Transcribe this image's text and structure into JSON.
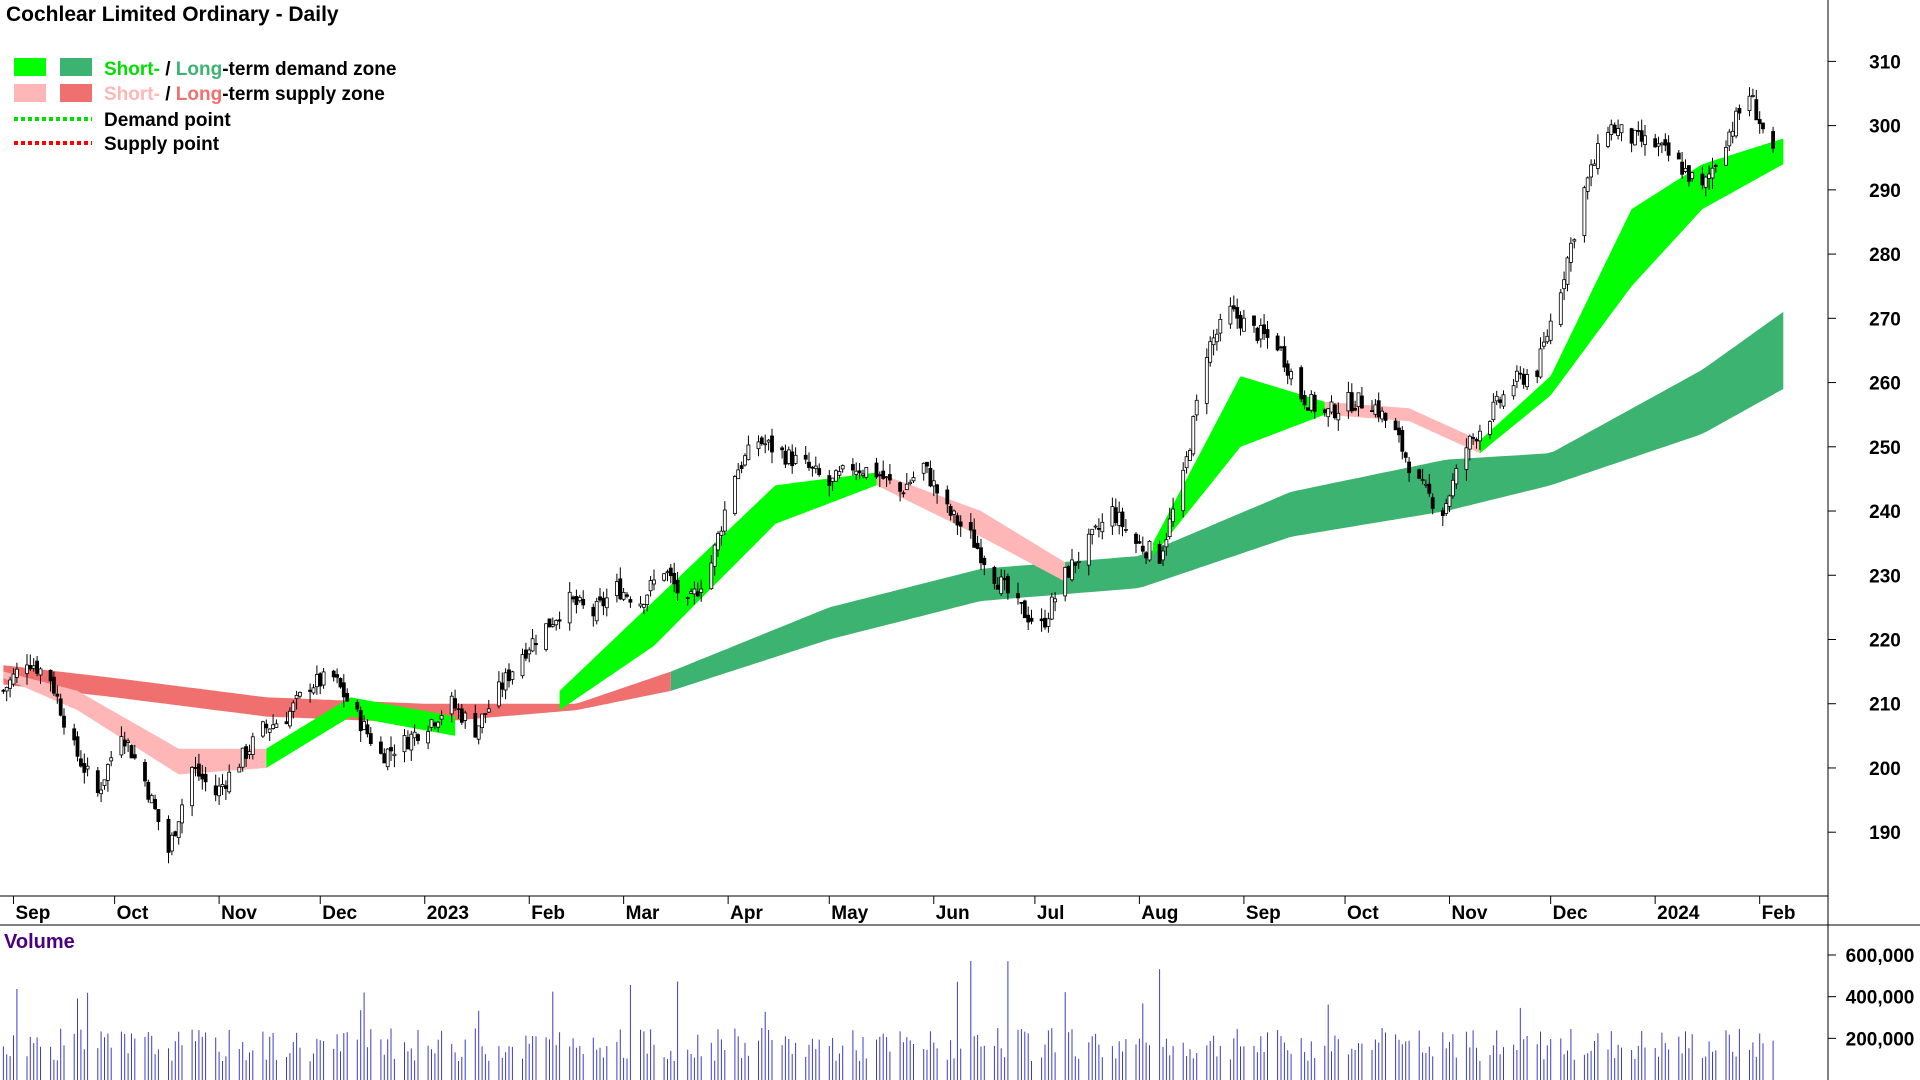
{
  "title": "Cochlear Limited Ordinary - Daily",
  "legend": {
    "zone1_short": "Short-",
    "zone1_rest_a": " / ",
    "zone1_long": "Long",
    "zone1_rest_b": "-term demand zone",
    "zone2_short": "Short-",
    "zone2_rest_a": " / ",
    "zone2_long": "Long",
    "zone2_rest_b": "-term supply zone",
    "demand_point": "Demand point",
    "supply_point": "Supply point"
  },
  "volume_label": "Volume",
  "colors": {
    "short_demand": "#00ff00",
    "long_demand": "#3cb371",
    "short_supply": "#ffb6b6",
    "long_supply": "#f07070",
    "overlap": "#ff6b2d",
    "demand_point": "#00e000",
    "supply_point": "#ff0000",
    "volume_bar": "#3c3cc8",
    "volume_label": "#4b0082"
  },
  "chart_data": {
    "type": "candlestick",
    "x_ticks": [
      "Sep",
      "Oct",
      "Nov",
      "Dec",
      "2023",
      "Feb",
      "Mar",
      "Apr",
      "May",
      "Jun",
      "Jul",
      "Aug",
      "Sep",
      "Oct",
      "Nov",
      "Dec",
      "2024",
      "Feb"
    ],
    "price_ticks": [
      190,
      200,
      210,
      220,
      230,
      240,
      250,
      260,
      270,
      280,
      290,
      300,
      310
    ],
    "volume_ticks": [
      "200,000",
      "400,000",
      "600,000"
    ],
    "ylim": [
      181,
      318
    ],
    "volume_ylim": [
      0,
      720000
    ],
    "price_path_weekly_close": [
      [
        "2022-08-29",
        212
      ],
      [
        "2022-09-05",
        217
      ],
      [
        "2022-09-12",
        214
      ],
      [
        "2022-09-19",
        203
      ],
      [
        "2022-09-26",
        196
      ],
      [
        "2022-10-03",
        206
      ],
      [
        "2022-10-10",
        198
      ],
      [
        "2022-10-17",
        187
      ],
      [
        "2022-10-24",
        200
      ],
      [
        "2022-10-31",
        196
      ],
      [
        "2022-11-07",
        201
      ],
      [
        "2022-11-14",
        206
      ],
      [
        "2022-11-21",
        208
      ],
      [
        "2022-11-28",
        213
      ],
      [
        "2022-12-05",
        214
      ],
      [
        "2022-12-12",
        208
      ],
      [
        "2022-12-19",
        202
      ],
      [
        "2022-12-26",
        204
      ],
      [
        "2023-01-02",
        207
      ],
      [
        "2023-01-09",
        210
      ],
      [
        "2023-01-16",
        206
      ],
      [
        "2023-01-23",
        212
      ],
      [
        "2023-01-30",
        218
      ],
      [
        "2023-02-06",
        222
      ],
      [
        "2023-02-13",
        226
      ],
      [
        "2023-02-20",
        224
      ],
      [
        "2023-02-27",
        228
      ],
      [
        "2023-03-06",
        226
      ],
      [
        "2023-03-13",
        231
      ],
      [
        "2023-03-20",
        225
      ],
      [
        "2023-03-27",
        232
      ],
      [
        "2023-04-03",
        246
      ],
      [
        "2023-04-10",
        251
      ],
      [
        "2023-04-17",
        249
      ],
      [
        "2023-04-24",
        247
      ],
      [
        "2023-05-01",
        244
      ],
      [
        "2023-05-08",
        247
      ],
      [
        "2023-05-15",
        246
      ],
      [
        "2023-05-22",
        243
      ],
      [
        "2023-05-29",
        247
      ],
      [
        "2023-06-05",
        240
      ],
      [
        "2023-06-12",
        236
      ],
      [
        "2023-06-19",
        230
      ],
      [
        "2023-06-26",
        225
      ],
      [
        "2023-07-03",
        222
      ],
      [
        "2023-07-10",
        230
      ],
      [
        "2023-07-17",
        235
      ],
      [
        "2023-07-24",
        240
      ],
      [
        "2023-07-31",
        235
      ],
      [
        "2023-08-07",
        233
      ],
      [
        "2023-08-14",
        245
      ],
      [
        "2023-08-21",
        265
      ],
      [
        "2023-08-28",
        271
      ],
      [
        "2023-09-04",
        268
      ],
      [
        "2023-09-11",
        266
      ],
      [
        "2023-09-18",
        258
      ],
      [
        "2023-09-25",
        255
      ],
      [
        "2023-10-02",
        257
      ],
      [
        "2023-10-09",
        257
      ],
      [
        "2023-10-16",
        252
      ],
      [
        "2023-10-23",
        244
      ],
      [
        "2023-10-30",
        240
      ],
      [
        "2023-11-06",
        250
      ],
      [
        "2023-11-13",
        255
      ],
      [
        "2023-11-20",
        260
      ],
      [
        "2023-11-27",
        262
      ],
      [
        "2023-12-04",
        275
      ],
      [
        "2023-12-11",
        290
      ],
      [
        "2023-12-18",
        300
      ],
      [
        "2023-12-25",
        298
      ],
      [
        "2024-01-01",
        297
      ],
      [
        "2024-01-08",
        294
      ],
      [
        "2024-01-15",
        290
      ],
      [
        "2024-01-22",
        298
      ],
      [
        "2024-01-29",
        305
      ],
      [
        "2024-02-05",
        295
      ]
    ],
    "long_term_zone_top": [
      [
        "2022-08-29",
        216
      ],
      [
        "2022-10-01",
        214
      ],
      [
        "2022-11-15",
        211
      ],
      [
        "2023-01-01",
        210
      ],
      [
        "2023-02-15",
        210
      ],
      [
        "2023-03-15",
        215
      ],
      [
        "2023-05-01",
        225
      ],
      [
        "2023-06-15",
        231
      ],
      [
        "2023-08-01",
        233
      ],
      [
        "2023-09-15",
        243
      ],
      [
        "2023-10-31",
        248
      ],
      [
        "2023-12-01",
        249
      ],
      [
        "2024-01-15",
        262
      ],
      [
        "2024-02-08",
        271
      ]
    ],
    "long_term_zone_bottom": [
      [
        "2022-08-29",
        213
      ],
      [
        "2022-10-01",
        211
      ],
      [
        "2022-11-15",
        208
      ],
      [
        "2023-01-01",
        207
      ],
      [
        "2023-02-15",
        209
      ],
      [
        "2023-03-15",
        212
      ],
      [
        "2023-05-01",
        220
      ],
      [
        "2023-06-15",
        226
      ],
      [
        "2023-08-01",
        228
      ],
      [
        "2023-09-15",
        236
      ],
      [
        "2023-10-31",
        240
      ],
      [
        "2023-12-01",
        244
      ],
      [
        "2024-01-15",
        252
      ],
      [
        "2024-02-08",
        259
      ]
    ],
    "short_term_zone_top": [
      [
        "2022-08-29",
        215
      ],
      [
        "2022-09-20",
        212
      ],
      [
        "2022-10-20",
        203
      ],
      [
        "2022-11-15",
        203
      ],
      [
        "2022-12-10",
        211
      ],
      [
        "2023-01-10",
        208
      ],
      [
        "2023-02-10",
        212
      ],
      [
        "2023-03-10",
        226
      ],
      [
        "2023-04-15",
        244
      ],
      [
        "2023-05-15",
        246
      ],
      [
        "2023-06-15",
        240
      ],
      [
        "2023-07-10",
        232
      ],
      [
        "2023-08-05",
        235
      ],
      [
        "2023-08-31",
        261
      ],
      [
        "2023-09-25",
        257
      ],
      [
        "2023-10-20",
        256
      ],
      [
        "2023-11-10",
        251
      ],
      [
        "2023-12-01",
        261
      ],
      [
        "2023-12-25",
        287
      ],
      [
        "2024-01-15",
        294
      ],
      [
        "2024-02-08",
        298
      ]
    ],
    "short_term_zone_bottom": [
      [
        "2022-08-29",
        214
      ],
      [
        "2022-09-20",
        209
      ],
      [
        "2022-10-20",
        199
      ],
      [
        "2022-11-15",
        200
      ],
      [
        "2022-12-10",
        208
      ],
      [
        "2023-01-10",
        205
      ],
      [
        "2023-02-10",
        209
      ],
      [
        "2023-03-10",
        219
      ],
      [
        "2023-04-15",
        238
      ],
      [
        "2023-05-15",
        244
      ],
      [
        "2023-06-15",
        236
      ],
      [
        "2023-07-10",
        229
      ],
      [
        "2023-08-05",
        233
      ],
      [
        "2023-08-31",
        250
      ],
      [
        "2023-09-25",
        255
      ],
      [
        "2023-10-20",
        254
      ],
      [
        "2023-11-10",
        249
      ],
      [
        "2023-12-01",
        258
      ],
      [
        "2023-12-25",
        275
      ],
      [
        "2024-01-15",
        287
      ],
      [
        "2024-02-08",
        294
      ]
    ]
  }
}
